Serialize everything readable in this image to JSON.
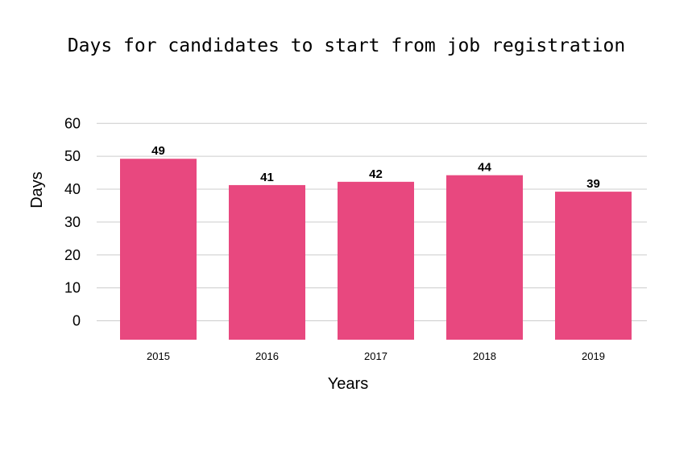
{
  "chart_data": {
    "type": "bar",
    "title": "Days for candidates to start from job registration",
    "xlabel": "Years",
    "ylabel": "Days",
    "categories": [
      "2015",
      "2016",
      "2017",
      "2018",
      "2019"
    ],
    "values": [
      49,
      41,
      42,
      44,
      39
    ],
    "data_labels": [
      "49",
      "41",
      "42",
      "44",
      "39"
    ],
    "yticks": [
      "0",
      "10",
      "20",
      "30",
      "40",
      "50",
      "60"
    ],
    "ylim": [
      0,
      60
    ],
    "grid": true,
    "legend": "none",
    "bar_color": "#e8487f"
  }
}
